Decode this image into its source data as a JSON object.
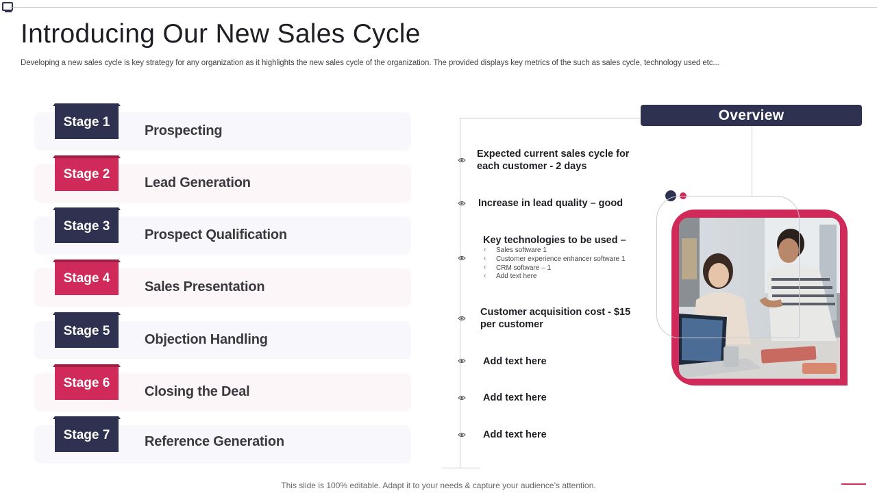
{
  "slide": {
    "title": "Introducing Our New Sales Cycle",
    "subtitle": "Developing a new sales cycle is key strategy for any organization as it highlights the new sales cycle of the organization. The provided displays key metrics of the such as sales cycle, technology used etc...",
    "footer": "This slide is 100% editable. Adapt it to your needs & capture your audience’s attention."
  },
  "stages": [
    {
      "tab": "Stage 1",
      "label": "Prospecting",
      "color": "#2e3150"
    },
    {
      "tab": "Stage 2",
      "label": "Lead Generation",
      "color": "#cf2a59"
    },
    {
      "tab": "Stage 3",
      "label": "Prospect Qualification",
      "color": "#2e3150"
    },
    {
      "tab": "Stage 4",
      "label": "Sales Presentation",
      "color": "#cf2a59"
    },
    {
      "tab": "Stage 5",
      "label": "Objection Handling",
      "color": "#2e3150"
    },
    {
      "tab": "Stage 6",
      "label": "Closing the Deal",
      "color": "#cf2a59"
    },
    {
      "tab": "Stage 7",
      "label": "Reference Generation",
      "color": "#2e3150"
    }
  ],
  "overview": {
    "heading": "Overview",
    "items": [
      {
        "line1": "Expected current sales cycle for",
        "line2": "each customer -  2 days"
      },
      {
        "line1": "Increase in lead quality – good"
      },
      {
        "line1": "Key technologies to be used –"
      },
      {
        "line1": "Customer acquisition cost - $15",
        "line2": "per customer"
      },
      {
        "line1": "Add  text here"
      },
      {
        "line1": "Add  text here"
      },
      {
        "line1": "Add  text here"
      }
    ],
    "technologies": [
      "Sales software 1",
      "Customer experience enhancer software 1",
      "CRM  software – 1",
      "Add text here"
    ]
  },
  "colors": {
    "navy": "#2e3150",
    "crimson": "#cf2a59"
  },
  "icons": [
    "eye-icon",
    "slide-icon"
  ]
}
